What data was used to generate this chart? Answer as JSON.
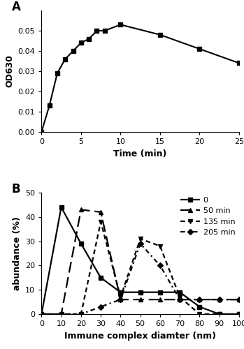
{
  "panel_A": {
    "title": "A",
    "x": [
      0,
      1,
      2,
      3,
      4,
      5,
      6,
      7,
      8,
      10,
      15,
      20,
      25
    ],
    "y": [
      0.0,
      0.013,
      0.029,
      0.036,
      0.04,
      0.044,
      0.046,
      0.05,
      0.05,
      0.053,
      0.048,
      0.041,
      0.034
    ],
    "xlabel": "Time (min)",
    "ylabel": "OD630",
    "xlim": [
      0,
      25
    ],
    "ylim": [
      0,
      0.06
    ],
    "xticks": [
      0,
      5,
      10,
      15,
      20,
      25
    ],
    "yticks": [
      0.0,
      0.01,
      0.02,
      0.03,
      0.04,
      0.05
    ]
  },
  "panel_B": {
    "title": "B",
    "xlabel": "Immune complex diamter (nm)",
    "ylabel": "abundance (%)",
    "xlim": [
      0,
      100
    ],
    "ylim": [
      0,
      50
    ],
    "xticks": [
      0,
      10,
      20,
      30,
      40,
      50,
      60,
      70,
      80,
      90,
      100
    ],
    "yticks": [
      0,
      10,
      20,
      30,
      40,
      50
    ],
    "series": [
      {
        "label": "0",
        "x": [
          0,
          10,
          20,
          30,
          40,
          50,
          60,
          70,
          80,
          90,
          100
        ],
        "y": [
          0,
          44,
          29,
          15,
          9,
          9,
          9,
          9,
          3,
          0,
          0
        ],
        "marker": "s",
        "linestyle_key": "solid"
      },
      {
        "label": "50 min",
        "x": [
          0,
          10,
          20,
          30,
          40,
          50,
          60,
          70,
          80,
          90,
          100
        ],
        "y": [
          0,
          0,
          43,
          42,
          6,
          6,
          6,
          6,
          6,
          6,
          6
        ],
        "marker": "^",
        "linestyle_key": "long_dash"
      },
      {
        "label": "135 min",
        "x": [
          0,
          10,
          20,
          30,
          40,
          50,
          60,
          70,
          80,
          90,
          100
        ],
        "y": [
          0,
          0,
          0,
          38,
          7,
          31,
          28,
          7,
          0,
          0,
          0
        ],
        "marker": "v",
        "linestyle_key": "short_dash"
      },
      {
        "label": "205 min",
        "x": [
          0,
          10,
          20,
          30,
          40,
          50,
          60,
          70,
          80,
          90,
          100
        ],
        "y": [
          0,
          0,
          0,
          3,
          6,
          29,
          20,
          6,
          6,
          6,
          6
        ],
        "marker": "D",
        "linestyle_key": "dot_dash"
      }
    ]
  }
}
